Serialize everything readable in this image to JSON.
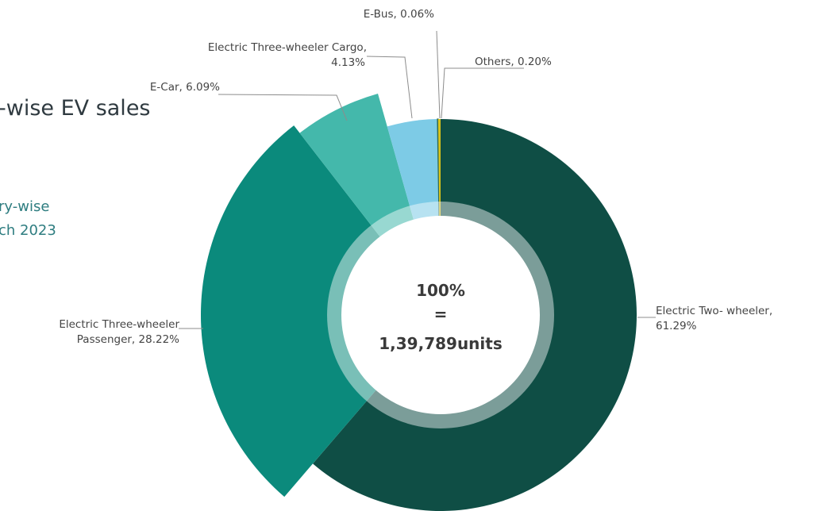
{
  "page": {
    "title_fragment": "-wise EV sales",
    "subtitle_line1": "ry-wise",
    "subtitle_line2": "ch 2023"
  },
  "chart_data": {
    "type": "pie",
    "variant": "exploded-donut",
    "center_text": [
      "100%",
      "=",
      "1,39,789units"
    ],
    "slices": [
      {
        "name": "Electric Two-wheeler",
        "value": 61.29,
        "color": "#0f4e45",
        "label_lines": [
          "Electric Two- wheeler,",
          "61.29%"
        ]
      },
      {
        "name": "Electric Three-wheeler Passenger",
        "value": 28.22,
        "color": "#0b8a7c",
        "label_lines": [
          "Electric Three-wheeler",
          "Passenger, 28.22%"
        ]
      },
      {
        "name": "E-Car",
        "value": 6.09,
        "color": "#44b8ab",
        "label_lines": [
          "E-Car, 6.09%"
        ]
      },
      {
        "name": "Electric Three-wheeler Cargo",
        "value": 4.13,
        "color": "#7dcbe6",
        "label_lines": [
          "Electric Three-wheeler Cargo,",
          "4.13%"
        ]
      },
      {
        "name": "E-Bus",
        "value": 0.06,
        "color": "#2f6a57",
        "label_lines": [
          "E-Bus, 0.06%"
        ]
      },
      {
        "name": "Others",
        "value": 0.2,
        "color": "#d8c21a",
        "label_lines": [
          "Others, 0.20%"
        ]
      }
    ],
    "inner_ring_color": "#ffffff",
    "inner_ring_opacity": 0.45,
    "center_fill": "#ffffff",
    "label_color": "#444444",
    "leader_color": "#8c8c8c",
    "center_text_color": "#3a3a3a"
  }
}
